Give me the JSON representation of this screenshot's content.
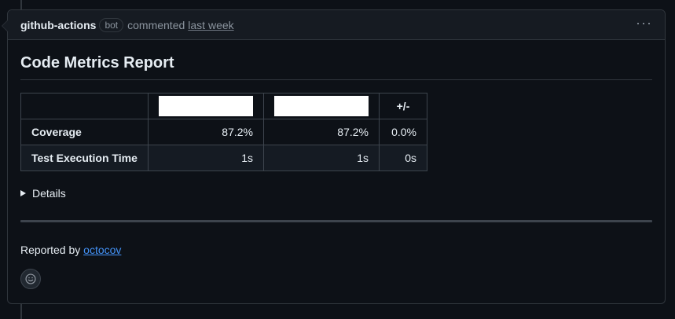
{
  "comment": {
    "author": "github-actions",
    "badge": "bot",
    "action": "commented",
    "time": "last week",
    "menu_icon": "kebab-horizontal-icon"
  },
  "report": {
    "title": "Code Metrics Report",
    "table": {
      "headers": [
        "",
        "",
        "",
        "+/-"
      ],
      "rows": [
        {
          "label": "Coverage",
          "values": [
            "87.2%",
            "87.2%",
            "0.0%"
          ]
        },
        {
          "label": "Test Execution Time",
          "values": [
            "1s",
            "1s",
            "0s"
          ]
        }
      ]
    },
    "details_label": "Details",
    "reported_by_prefix": "Reported by",
    "reported_by_link": "octocov"
  },
  "reaction": {
    "icon": "smiley-icon"
  },
  "colors": {
    "background": "#0d1117",
    "header_bg": "#161b22",
    "border": "#30363d",
    "link": "#4493f8",
    "muted": "#8b949e"
  }
}
